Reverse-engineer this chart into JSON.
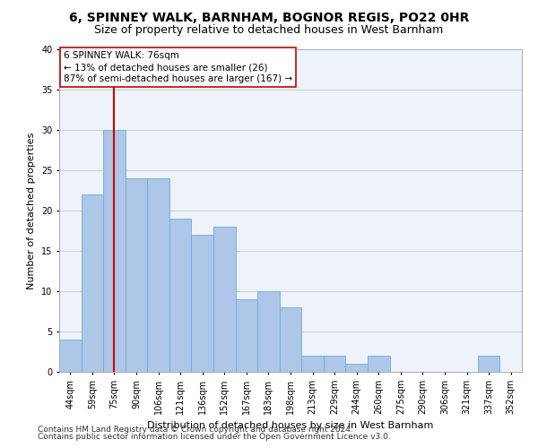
{
  "title": "6, SPINNEY WALK, BARNHAM, BOGNOR REGIS, PO22 0HR",
  "subtitle": "Size of property relative to detached houses in West Barnham",
  "xlabel": "Distribution of detached houses by size in West Barnham",
  "ylabel": "Number of detached properties",
  "categories": [
    "44sqm",
    "59sqm",
    "75sqm",
    "90sqm",
    "106sqm",
    "121sqm",
    "136sqm",
    "152sqm",
    "167sqm",
    "183sqm",
    "198sqm",
    "213sqm",
    "229sqm",
    "244sqm",
    "260sqm",
    "275sqm",
    "290sqm",
    "306sqm",
    "321sqm",
    "337sqm",
    "352sqm"
  ],
  "values": [
    4,
    22,
    30,
    24,
    24,
    19,
    17,
    18,
    9,
    10,
    8,
    2,
    2,
    1,
    2,
    0,
    0,
    0,
    0,
    2,
    0
  ],
  "bar_color": "#aec6e8",
  "bar_edgecolor": "#6baed6",
  "vline_x": 2,
  "vline_color": "#cc0000",
  "annotation_text": "6 SPINNEY WALK: 76sqm\n← 13% of detached houses are smaller (26)\n87% of semi-detached houses are larger (167) →",
  "annotation_box_edgecolor": "#cc0000",
  "annotation_box_facecolor": "#ffffff",
  "ylim": [
    0,
    40
  ],
  "yticks": [
    0,
    5,
    10,
    15,
    20,
    25,
    30,
    35,
    40
  ],
  "footer1": "Contains HM Land Registry data © Crown copyright and database right 2024.",
  "footer2": "Contains public sector information licensed under the Open Government Licence v3.0.",
  "bg_color": "#ffffff",
  "plot_bg_color": "#eef3fa",
  "grid_color": "#cccccc",
  "title_fontsize": 10,
  "subtitle_fontsize": 9,
  "axis_label_fontsize": 8,
  "tick_fontsize": 7,
  "annotation_fontsize": 7.5,
  "footer_fontsize": 6.5
}
